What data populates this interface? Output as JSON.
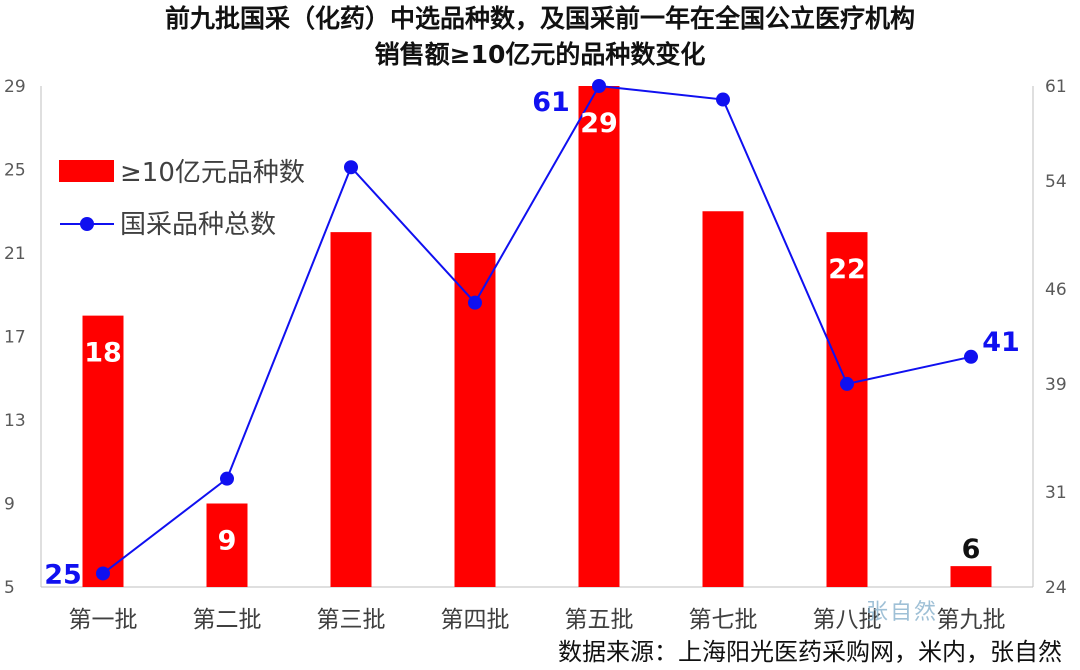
{
  "title_line1": "前九批国采（化药）中选品种数，及国采前一年在全国公立医疗机构",
  "title_line2": "销售额≥10亿元的品种数变化",
  "source": "数据来源：上海阳光医药采购网，米内，张自然",
  "watermark": "张自然",
  "colors": {
    "bar": "#ff0000",
    "line": "#1010f0",
    "axis": "#bfbfbf",
    "tick": "#595959"
  },
  "chart_data": {
    "type": "bar+line",
    "categories": [
      "第一批",
      "第二批",
      "第三批",
      "第四批",
      "第五批",
      "第七批",
      "第八批",
      "第九批"
    ],
    "left_axis": {
      "ticks": [
        5,
        9,
        13,
        17,
        21,
        25,
        29
      ],
      "ylim": [
        5,
        29
      ]
    },
    "right_axis": {
      "ticks": [
        24,
        31,
        39,
        46,
        54,
        61
      ],
      "ylim": [
        24,
        61
      ]
    },
    "series": [
      {
        "name": "≥10亿元品种数",
        "type": "bar",
        "axis": "left",
        "values": [
          18,
          9,
          22,
          21,
          29,
          23,
          22,
          6
        ],
        "labels": [
          "18",
          "9",
          "",
          "",
          "29",
          "",
          "22",
          "6"
        ]
      },
      {
        "name": "国采品种总数",
        "type": "line",
        "axis": "right",
        "values": [
          25,
          32,
          55,
          45,
          61,
          60,
          39,
          41
        ],
        "labels": [
          "25",
          "",
          "",
          "",
          "61",
          "",
          "",
          "41"
        ]
      }
    ],
    "legend_position": "top-left"
  }
}
